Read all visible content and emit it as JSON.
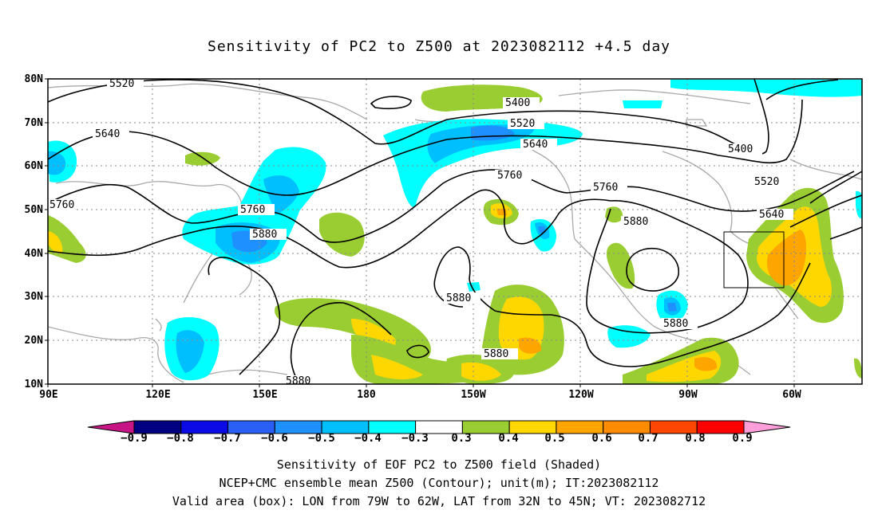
{
  "title": "Sensitivity of PC2 to Z500 at 2023082112 +4.5 day",
  "y_ticks": [
    "80N",
    "70N",
    "60N",
    "50N",
    "40N",
    "30N",
    "20N",
    "10N"
  ],
  "x_ticks": [
    "90E",
    "120E",
    "150E",
    "180",
    "150W",
    "120W",
    "90W",
    "60W"
  ],
  "contour_labels": [
    "5520",
    "5400",
    "5520",
    "5640",
    "5640",
    "5760",
    "5760",
    "5880",
    "5760",
    "5760",
    "5880",
    "5880",
    "5880",
    "5880",
    "5880",
    "5400",
    "5520",
    "5640"
  ],
  "colorbar": {
    "labels": [
      "−0.9",
      "−0.8",
      "−0.7",
      "−0.6",
      "−0.5",
      "−0.4",
      "−0.3",
      "0.3",
      "0.4",
      "0.5",
      "0.6",
      "0.7",
      "0.8",
      "0.9"
    ],
    "colors": [
      "#000080",
      "#0a0ae6",
      "#2a5ff5",
      "#1e90ff",
      "#00bfff",
      "#00ffff",
      "#ffffff",
      "#9acd32",
      "#ffd700",
      "#ffa500",
      "#ff8c00",
      "#ff4500",
      "#ff0000"
    ],
    "low_end_color": "#c71585",
    "high_end_color": "#ff9ed8"
  },
  "captions": [
    "Sensitivity of EOF PC2 to Z500 field (Shaded)",
    "NCEP+CMC ensemble mean Z500 (Contour); unit(m); IT:2023082112",
    "Valid area (box): LON from 79W to 62W, LAT from 32N to 45N; VT: 2023082712"
  ]
}
